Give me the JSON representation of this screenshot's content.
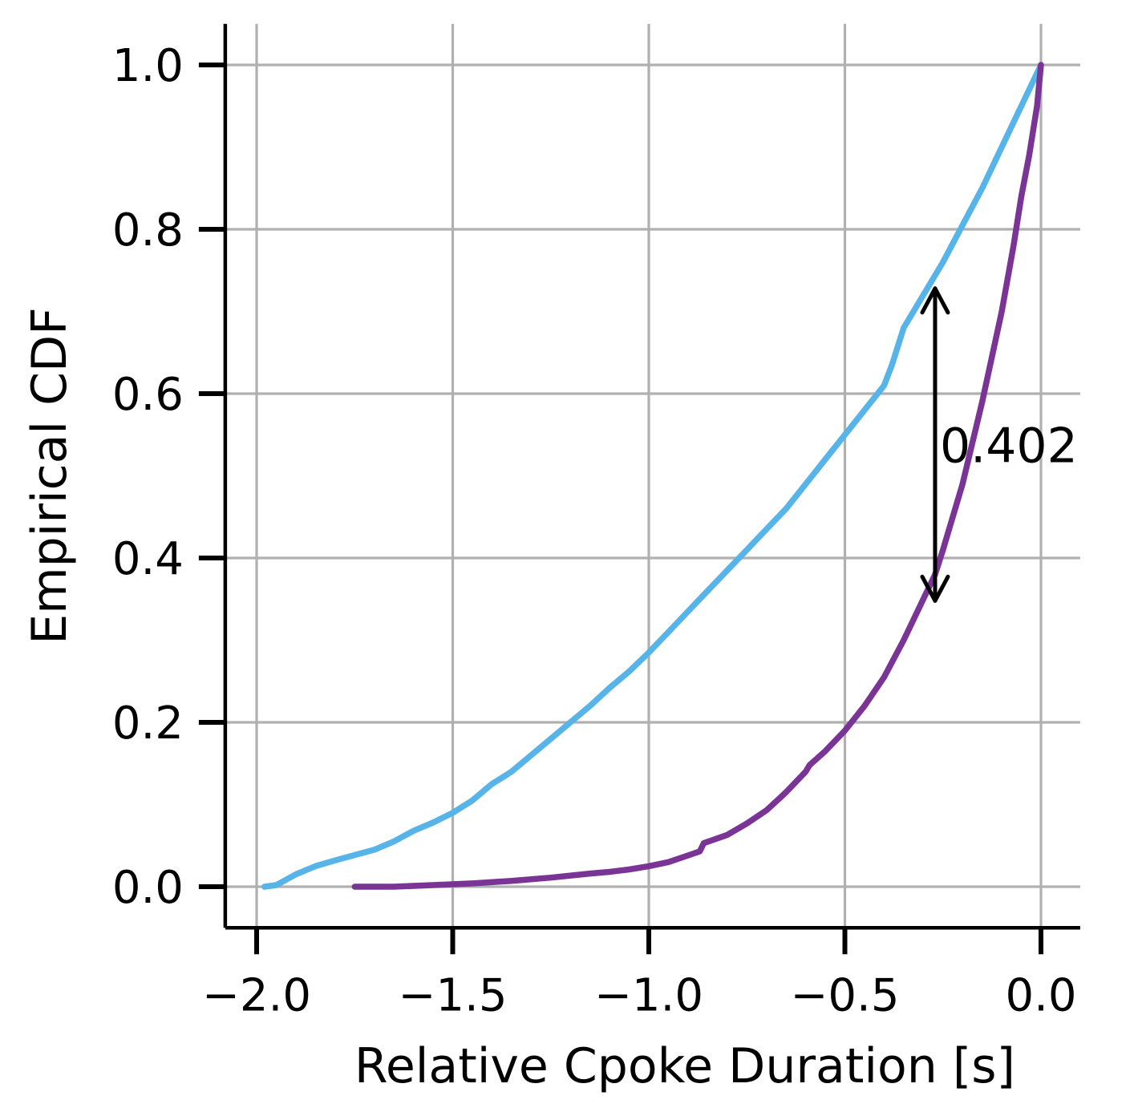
{
  "chart_data": {
    "type": "line",
    "title": "",
    "xlabel": "Relative Cpoke Duration [s]",
    "ylabel": "Empirical CDF",
    "xlim": [
      -2.08,
      0.1
    ],
    "ylim": [
      -0.05,
      1.05
    ],
    "xticks": [
      -2.0,
      -1.5,
      -1.0,
      -0.5,
      0.0
    ],
    "xtick_labels": [
      "−2.0",
      "−1.5",
      "−1.0",
      "−0.5",
      "0.0"
    ],
    "yticks": [
      0.0,
      0.2,
      0.4,
      0.6,
      0.8,
      1.0
    ],
    "ytick_labels": [
      "0.0",
      "0.2",
      "0.4",
      "0.6",
      "0.8",
      "1.0"
    ],
    "grid": true,
    "legend": "none",
    "series": [
      {
        "color": "#56b4e9",
        "x": [
          -1.98,
          -1.95,
          -1.9,
          -1.85,
          -1.8,
          -1.7,
          -1.65,
          -1.6,
          -1.55,
          -1.5,
          -1.45,
          -1.4,
          -1.35,
          -1.3,
          -1.25,
          -1.2,
          -1.15,
          -1.1,
          -1.05,
          -1.0,
          -0.95,
          -0.9,
          -0.85,
          -0.8,
          -0.75,
          -0.7,
          -0.65,
          -0.6,
          -0.55,
          -0.5,
          -0.45,
          -0.4,
          -0.38,
          -0.35,
          -0.3,
          -0.25,
          -0.2,
          -0.15,
          -0.1,
          -0.05,
          0.0
        ],
        "y": [
          0.0,
          0.002,
          0.015,
          0.025,
          0.032,
          0.045,
          0.055,
          0.068,
          0.078,
          0.09,
          0.105,
          0.125,
          0.14,
          0.16,
          0.18,
          0.2,
          0.22,
          0.242,
          0.262,
          0.285,
          0.31,
          0.335,
          0.36,
          0.385,
          0.41,
          0.435,
          0.46,
          0.49,
          0.52,
          0.55,
          0.58,
          0.61,
          0.635,
          0.68,
          0.72,
          0.76,
          0.805,
          0.85,
          0.9,
          0.95,
          1.0
        ]
      },
      {
        "color": "#7a3495",
        "x": [
          -1.75,
          -1.65,
          -1.55,
          -1.45,
          -1.35,
          -1.25,
          -1.15,
          -1.1,
          -1.05,
          -1.0,
          -0.95,
          -0.9,
          -0.87,
          -0.86,
          -0.8,
          -0.75,
          -0.7,
          -0.65,
          -0.6,
          -0.59,
          -0.55,
          -0.5,
          -0.45,
          -0.4,
          -0.35,
          -0.3,
          -0.27,
          -0.25,
          -0.2,
          -0.15,
          -0.1,
          -0.07,
          -0.05,
          -0.03,
          -0.01,
          0.0
        ],
        "y": [
          0.0,
          0.0,
          0.002,
          0.004,
          0.007,
          0.011,
          0.016,
          0.018,
          0.021,
          0.025,
          0.03,
          0.038,
          0.043,
          0.053,
          0.063,
          0.077,
          0.093,
          0.115,
          0.14,
          0.148,
          0.165,
          0.19,
          0.22,
          0.255,
          0.3,
          0.35,
          0.38,
          0.41,
          0.49,
          0.59,
          0.7,
          0.78,
          0.84,
          0.89,
          0.95,
          1.0
        ]
      }
    ],
    "annotation": {
      "text": "0.402",
      "x": -0.27,
      "y_low": 0.348,
      "y_high": 0.728
    }
  }
}
